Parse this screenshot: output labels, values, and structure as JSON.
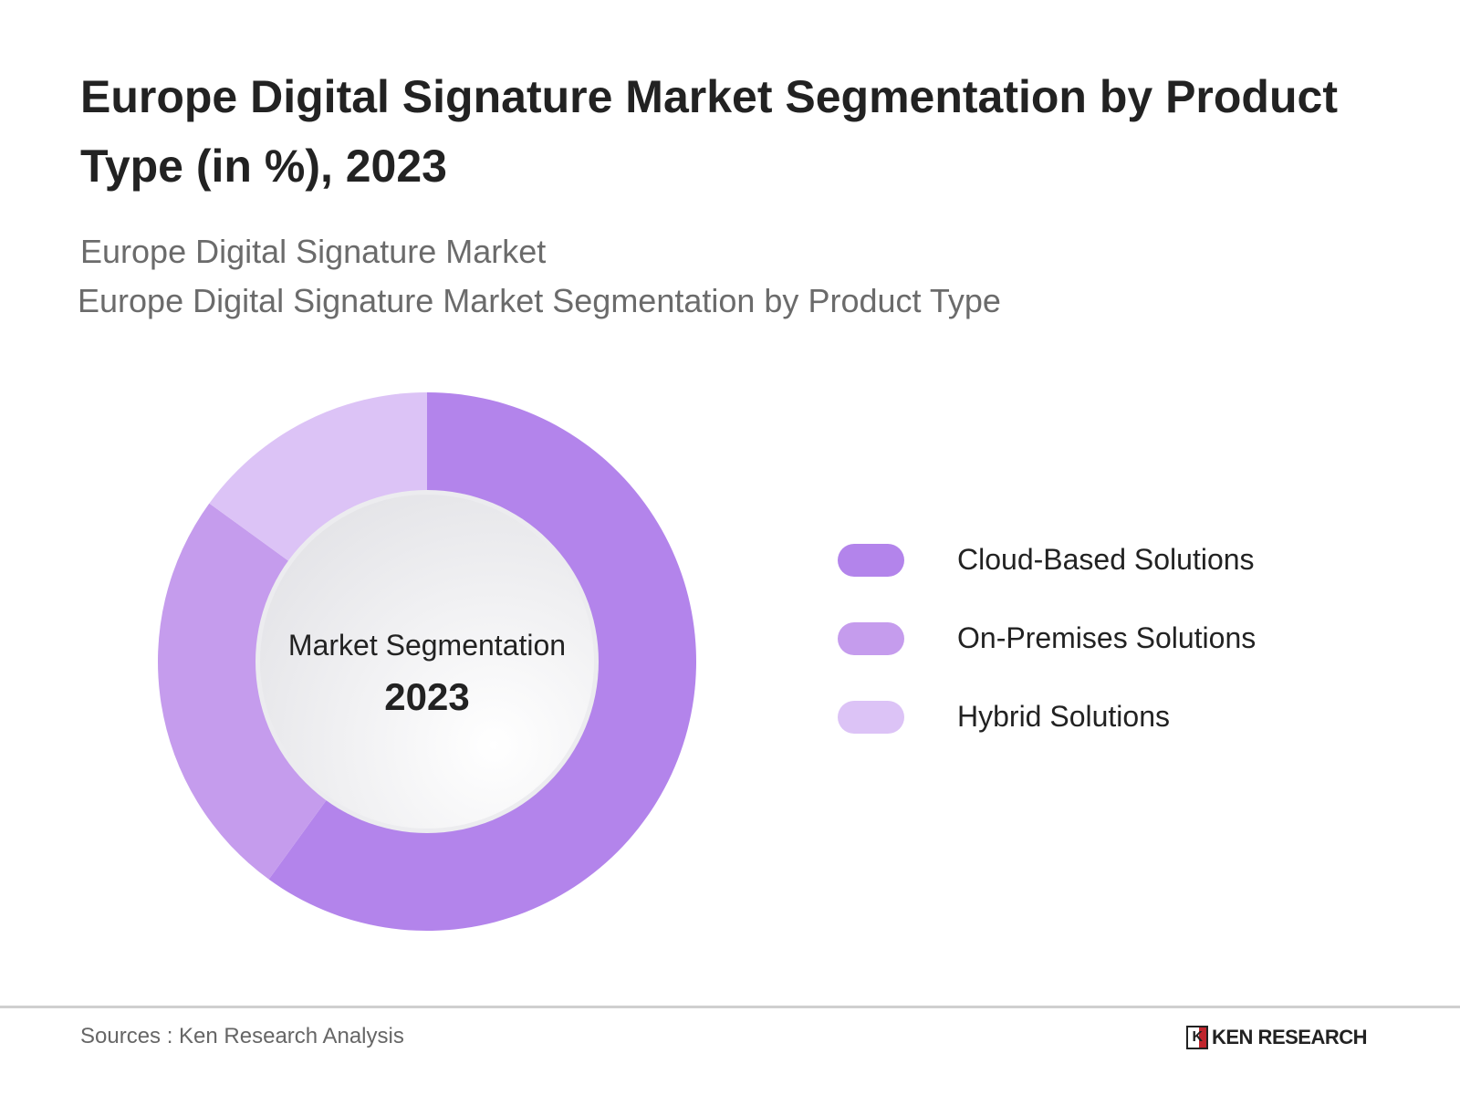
{
  "title": "Europe Digital Signature Market Segmentation by Product Type (in %), 2023",
  "subtitle1": "Europe Digital Signature Market",
  "subtitle2": "Europe Digital Signature Market Segmentation by Product Type",
  "chart_data": {
    "type": "pie",
    "variant": "donut",
    "center_label": "Market Segmentation",
    "center_value": "2023",
    "categories": [
      "Cloud-Based Solutions",
      "On-Premises Solutions",
      "Hybrid Solutions"
    ],
    "values": [
      60,
      25,
      15
    ],
    "colors": [
      "#b384eb",
      "#c59ced",
      "#dcc3f6"
    ],
    "legend_position": "right"
  },
  "footer": {
    "source": "Sources : Ken Research Analysis",
    "logo_text": "KEN RESEARCH"
  }
}
